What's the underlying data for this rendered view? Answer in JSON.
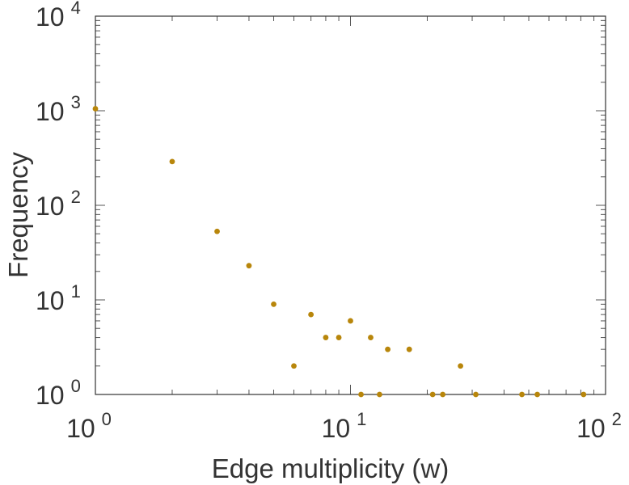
{
  "chart_data": {
    "type": "scatter",
    "xlabel": "Edge multiplicity (w)",
    "ylabel": "Frequency",
    "xscale": "log",
    "yscale": "log",
    "xlim": [
      1,
      100
    ],
    "ylim": [
      1,
      10000
    ],
    "x_ticks": [
      {
        "base": "10",
        "exp": "0"
      },
      {
        "base": "10",
        "exp": "1"
      },
      {
        "base": "10",
        "exp": "2"
      }
    ],
    "y_ticks": [
      {
        "base": "10",
        "exp": "0"
      },
      {
        "base": "10",
        "exp": "1"
      },
      {
        "base": "10",
        "exp": "2"
      },
      {
        "base": "10",
        "exp": "3"
      },
      {
        "base": "10",
        "exp": "4"
      }
    ],
    "grid": false,
    "marker_color": "#b8860b",
    "axis_color": "#333333",
    "series": [
      {
        "points": [
          {
            "x": 1,
            "y": 1050
          },
          {
            "x": 2,
            "y": 290
          },
          {
            "x": 3,
            "y": 53
          },
          {
            "x": 4,
            "y": 23
          },
          {
            "x": 5,
            "y": 9
          },
          {
            "x": 6,
            "y": 2
          },
          {
            "x": 7,
            "y": 7
          },
          {
            "x": 8,
            "y": 4
          },
          {
            "x": 9,
            "y": 4
          },
          {
            "x": 10,
            "y": 6
          },
          {
            "x": 11,
            "y": 1
          },
          {
            "x": 12,
            "y": 4
          },
          {
            "x": 13,
            "y": 1
          },
          {
            "x": 14,
            "y": 3
          },
          {
            "x": 17,
            "y": 3
          },
          {
            "x": 21,
            "y": 1
          },
          {
            "x": 23,
            "y": 1
          },
          {
            "x": 27,
            "y": 2
          },
          {
            "x": 31,
            "y": 1
          },
          {
            "x": 47,
            "y": 1
          },
          {
            "x": 54,
            "y": 1
          },
          {
            "x": 82,
            "y": 1
          }
        ]
      }
    ]
  }
}
